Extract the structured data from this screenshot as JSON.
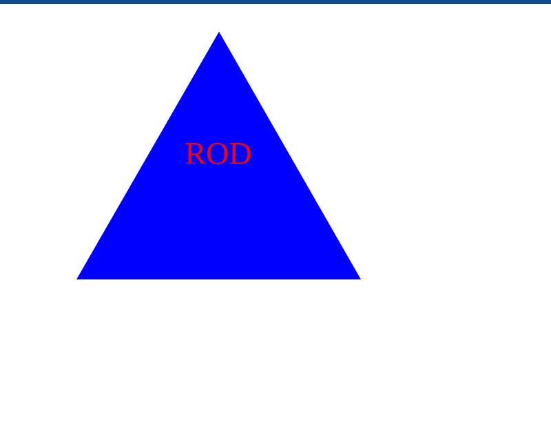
{
  "colors": {
    "top_bar": "#114b8f",
    "triangle_fill": "#0000ff",
    "label_color": "#ff0000",
    "background": "#ffffff"
  },
  "shape": {
    "type": "triangle",
    "label": "ROD"
  }
}
